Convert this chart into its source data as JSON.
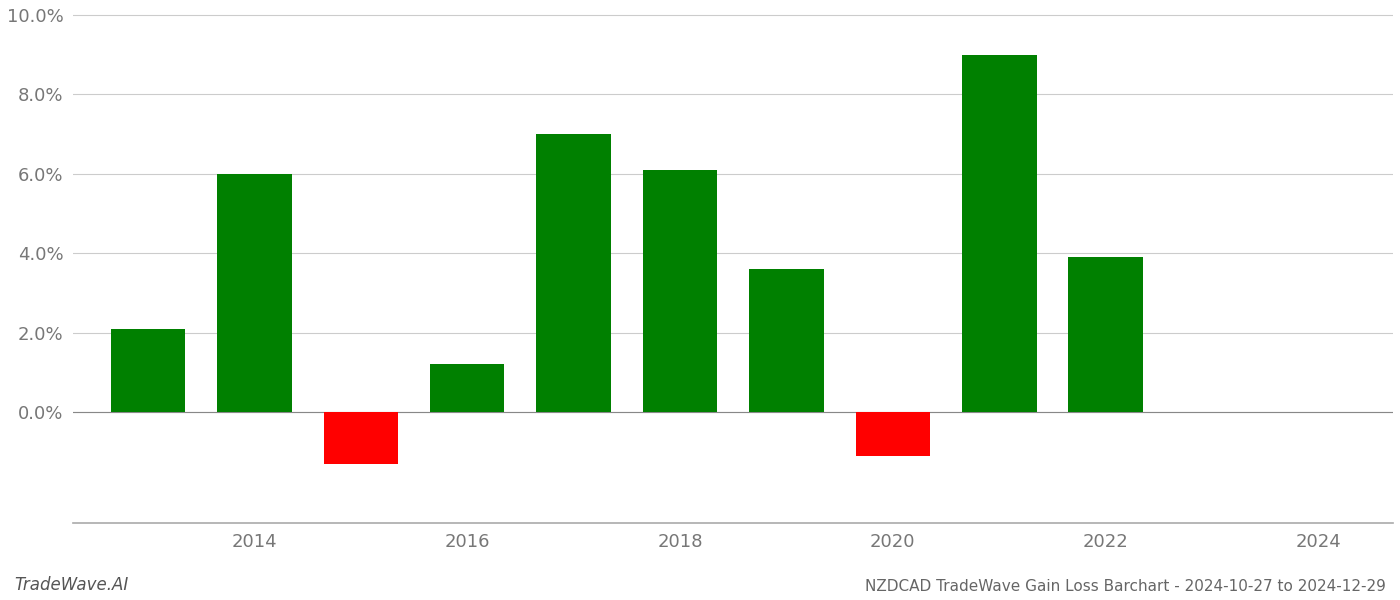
{
  "years": [
    2013,
    2014,
    2015,
    2016,
    2017,
    2018,
    2019,
    2020,
    2021,
    2022,
    2023
  ],
  "values": [
    0.021,
    0.06,
    -0.013,
    0.012,
    0.07,
    0.061,
    0.036,
    -0.011,
    0.09,
    0.039,
    0.0
  ],
  "bar_colors": [
    "#008000",
    "#008000",
    "#ff0000",
    "#008000",
    "#008000",
    "#008000",
    "#008000",
    "#ff0000",
    "#008000",
    "#008000",
    "#008000"
  ],
  "title": "NZDCAD TradeWave Gain Loss Barchart - 2024-10-27 to 2024-12-29",
  "watermark": "TradeWave.AI",
  "background_color": "#ffffff",
  "grid_color": "#cccccc",
  "ylim_min": -0.028,
  "ylim_max": 0.102,
  "bar_width": 0.7,
  "xtick_labels": [
    "2014",
    "2016",
    "2018",
    "2020",
    "2022",
    "2024"
  ],
  "xtick_positions": [
    2014,
    2016,
    2018,
    2020,
    2022,
    2024
  ],
  "xlim_min": 2012.3,
  "xlim_max": 2024.7
}
